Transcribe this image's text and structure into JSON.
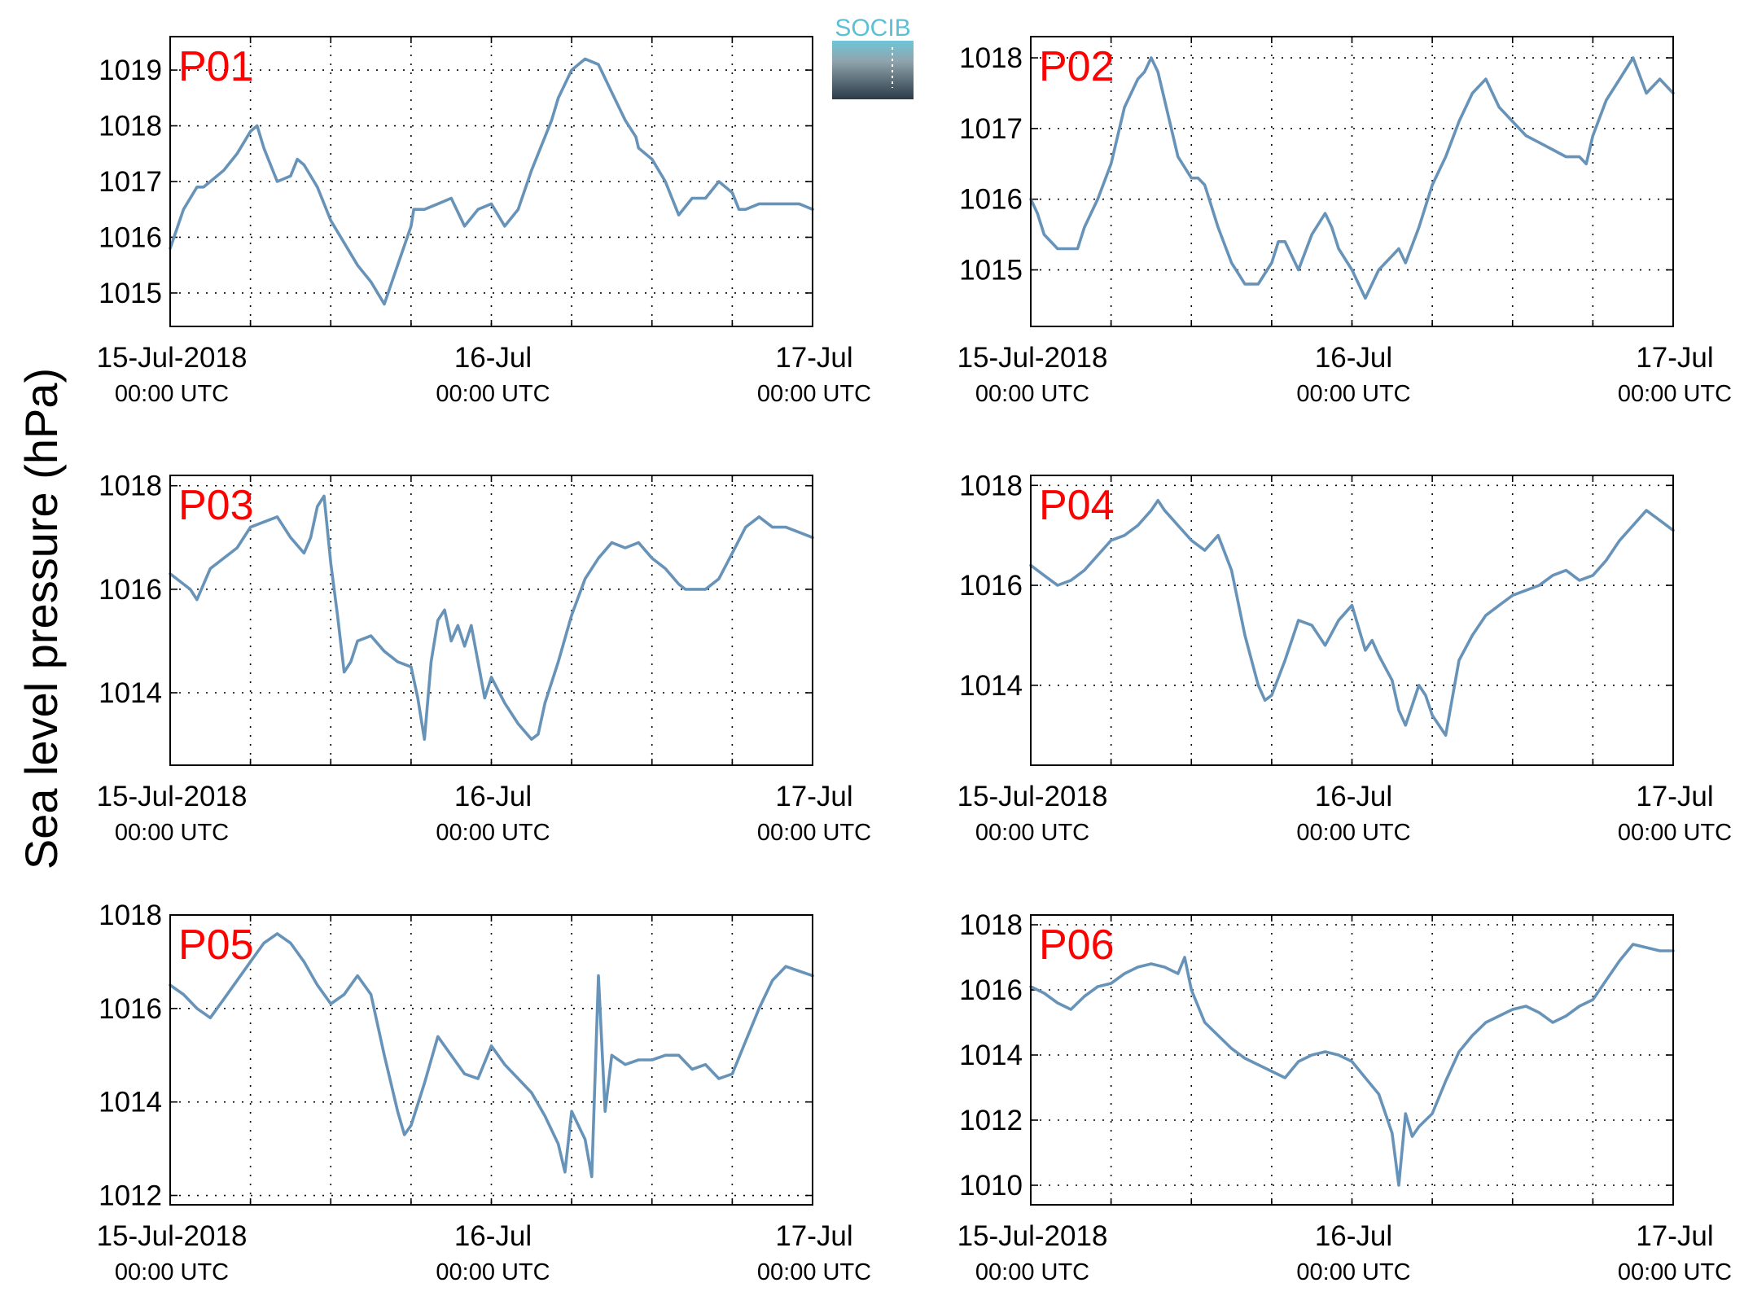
{
  "figure": {
    "ylabel": "Sea level pressure (hPa)",
    "logo_text": "SOCIB",
    "colors": {
      "line": "#6893b9",
      "panel_label": "#ff0000",
      "axis": "#000000",
      "logo_top": "#5bc0d6",
      "logo_bottom": "#2b3a47"
    }
  },
  "chart_data": [
    {
      "type": "line",
      "label": "P01",
      "ylim": [
        1014.4,
        1019.6
      ],
      "yticks": [
        1015,
        1016,
        1017,
        1018,
        1019
      ],
      "grid": true,
      "xlim": [
        0,
        48
      ],
      "xticks": [
        {
          "t": 0,
          "date": "15-Jul-2018",
          "time": "00:00 UTC"
        },
        {
          "t": 24,
          "date": "16-Jul",
          "time": "00:00 UTC"
        },
        {
          "t": 48,
          "date": "17-Jul",
          "time": "00:00 UTC"
        }
      ],
      "x": [
        0,
        1,
        2,
        2.5,
        3,
        4,
        5,
        6,
        6.5,
        7,
        8,
        9,
        9.5,
        10,
        11,
        12,
        13,
        14,
        15,
        16,
        17,
        18,
        18.2,
        19,
        20,
        21,
        22,
        23,
        24,
        25,
        26,
        27,
        28,
        28.5,
        29,
        30,
        31,
        32,
        33,
        34,
        34.8,
        35,
        36,
        37,
        38,
        39,
        40,
        41,
        42,
        42.5,
        43,
        44,
        45,
        45.5,
        46,
        47,
        48
      ],
      "y": [
        1015.8,
        1016.5,
        1016.9,
        1016.9,
        1017.0,
        1017.2,
        1017.5,
        1017.9,
        1018.0,
        1017.6,
        1017.0,
        1017.1,
        1017.4,
        1017.3,
        1016.9,
        1016.3,
        1015.9,
        1015.5,
        1015.2,
        1014.8,
        1015.5,
        1016.2,
        1016.5,
        1016.5,
        1016.6,
        1016.7,
        1016.2,
        1016.5,
        1016.6,
        1016.2,
        1016.5,
        1017.2,
        1017.8,
        1018.1,
        1018.5,
        1019.0,
        1019.2,
        1019.1,
        1018.6,
        1018.1,
        1017.8,
        1017.6,
        1017.4,
        1017.0,
        1016.4,
        1016.7,
        1016.7,
        1017.0,
        1016.8,
        1016.5,
        1016.5,
        1016.6,
        1016.6,
        1016.6,
        1016.6,
        1016.6,
        1016.5
      ]
    },
    {
      "type": "line",
      "label": "P02",
      "ylim": [
        1014.2,
        1018.3
      ],
      "yticks": [
        1015,
        1016,
        1017,
        1018
      ],
      "grid": true,
      "xlim": [
        0,
        48
      ],
      "xticks": [
        {
          "t": 0,
          "date": "15-Jul-2018",
          "time": "00:00 UTC"
        },
        {
          "t": 24,
          "date": "16-Jul",
          "time": "00:00 UTC"
        },
        {
          "t": 48,
          "date": "17-Jul",
          "time": "00:00 UTC"
        }
      ],
      "x": [
        0,
        0.5,
        1,
        2,
        3,
        3.5,
        4,
        5,
        6,
        7,
        8,
        8.5,
        9,
        9.5,
        10,
        11,
        12,
        12.5,
        13,
        14,
        15,
        16,
        17,
        18,
        18.5,
        19,
        20,
        21,
        22,
        22.5,
        23,
        24,
        25,
        26,
        27,
        27.5,
        28,
        29,
        30,
        31,
        32,
        33,
        34,
        35,
        36,
        37,
        38,
        39,
        40,
        41,
        41.5,
        42,
        43,
        44,
        45,
        46,
        47,
        48
      ],
      "y": [
        1016.0,
        1015.8,
        1015.5,
        1015.3,
        1015.3,
        1015.3,
        1015.6,
        1016.0,
        1016.5,
        1017.3,
        1017.7,
        1017.8,
        1018.0,
        1017.8,
        1017.4,
        1016.6,
        1016.3,
        1016.3,
        1016.2,
        1015.6,
        1015.1,
        1014.8,
        1014.8,
        1015.1,
        1015.4,
        1015.4,
        1015.0,
        1015.5,
        1015.8,
        1015.6,
        1015.3,
        1015.0,
        1014.6,
        1015.0,
        1015.2,
        1015.3,
        1015.1,
        1015.6,
        1016.2,
        1016.6,
        1017.1,
        1017.5,
        1017.7,
        1017.3,
        1017.1,
        1016.9,
        1016.8,
        1016.7,
        1016.6,
        1016.6,
        1016.5,
        1016.9,
        1017.4,
        1017.7,
        1018.0,
        1017.5,
        1017.7,
        1017.5
      ]
    },
    {
      "type": "line",
      "label": "P03",
      "ylim": [
        1012.6,
        1018.2
      ],
      "yticks": [
        1014,
        1016,
        1018
      ],
      "grid": true,
      "xlim": [
        0,
        48
      ],
      "xticks": [
        {
          "t": 0,
          "date": "15-Jul-2018",
          "time": "00:00 UTC"
        },
        {
          "t": 24,
          "date": "16-Jul",
          "time": "00:00 UTC"
        },
        {
          "t": 48,
          "date": "17-Jul",
          "time": "00:00 UTC"
        }
      ],
      "x": [
        0,
        1,
        1.5,
        2,
        3,
        4,
        5,
        6,
        7,
        8,
        9,
        10,
        10.5,
        11,
        11.5,
        12,
        12.5,
        13,
        13.5,
        14,
        15,
        16,
        17,
        18,
        18.5,
        19,
        19.5,
        20,
        20.5,
        21,
        21.5,
        22,
        22.5,
        23,
        23.5,
        24,
        25,
        26,
        27,
        27.5,
        28,
        29,
        30,
        31,
        32,
        33,
        34,
        35,
        36,
        37,
        38,
        38.5,
        39,
        40,
        41,
        42,
        43,
        44,
        45,
        46,
        47,
        48
      ],
      "y": [
        1016.3,
        1016.1,
        1016.0,
        1015.8,
        1016.4,
        1016.6,
        1016.8,
        1017.2,
        1017.3,
        1017.4,
        1017.0,
        1016.7,
        1017.0,
        1017.6,
        1017.8,
        1016.5,
        1015.5,
        1014.4,
        1014.6,
        1015.0,
        1015.1,
        1014.8,
        1014.6,
        1014.5,
        1013.9,
        1013.1,
        1014.6,
        1015.4,
        1015.6,
        1015.0,
        1015.3,
        1014.9,
        1015.3,
        1014.6,
        1013.9,
        1014.3,
        1013.8,
        1013.4,
        1013.1,
        1013.2,
        1013.8,
        1014.6,
        1015.5,
        1016.2,
        1016.6,
        1016.9,
        1016.8,
        1016.9,
        1016.6,
        1016.4,
        1016.1,
        1016.0,
        1016.0,
        1016.0,
        1016.2,
        1016.7,
        1017.2,
        1017.4,
        1017.2,
        1017.2,
        1017.1,
        1017.0
      ]
    },
    {
      "type": "line",
      "label": "P04",
      "ylim": [
        1012.4,
        1018.2
      ],
      "yticks": [
        1014,
        1016,
        1018
      ],
      "grid": true,
      "xlim": [
        0,
        48
      ],
      "xticks": [
        {
          "t": 0,
          "date": "15-Jul-2018",
          "time": "00:00 UTC"
        },
        {
          "t": 24,
          "date": "16-Jul",
          "time": "00:00 UTC"
        },
        {
          "t": 48,
          "date": "17-Jul",
          "time": "00:00 UTC"
        }
      ],
      "x": [
        0,
        1,
        2,
        3,
        4,
        5,
        6,
        7,
        8,
        9,
        9.5,
        10,
        11,
        12,
        13,
        14,
        15,
        16,
        17,
        17.5,
        18,
        19,
        20,
        21,
        22,
        23,
        24,
        25,
        25.5,
        26,
        27,
        27.5,
        28,
        29,
        29.5,
        30,
        31,
        32,
        33,
        34,
        35,
        36,
        37,
        38,
        39,
        40,
        41,
        42,
        43,
        44,
        45,
        46,
        47,
        48
      ],
      "y": [
        1016.4,
        1016.2,
        1016.0,
        1016.1,
        1016.3,
        1016.6,
        1016.9,
        1017.0,
        1017.2,
        1017.5,
        1017.7,
        1017.5,
        1017.2,
        1016.9,
        1016.7,
        1017.0,
        1016.3,
        1015.0,
        1014.0,
        1013.7,
        1013.8,
        1014.5,
        1015.3,
        1015.2,
        1014.8,
        1015.3,
        1015.6,
        1014.7,
        1014.9,
        1014.6,
        1014.1,
        1013.5,
        1013.2,
        1014.0,
        1013.8,
        1013.4,
        1013.0,
        1014.5,
        1015.0,
        1015.4,
        1015.6,
        1015.8,
        1015.9,
        1016.0,
        1016.2,
        1016.3,
        1016.1,
        1016.2,
        1016.5,
        1016.9,
        1017.2,
        1017.5,
        1017.3,
        1017.1
      ]
    },
    {
      "type": "line",
      "label": "P05",
      "ylim": [
        1011.8,
        1018.0
      ],
      "yticks": [
        1012,
        1014,
        1016,
        1018
      ],
      "grid": true,
      "xlim": [
        0,
        48
      ],
      "xticks": [
        {
          "t": 0,
          "date": "15-Jul-2018",
          "time": "00:00 UTC"
        },
        {
          "t": 24,
          "date": "16-Jul",
          "time": "00:00 UTC"
        },
        {
          "t": 48,
          "date": "17-Jul",
          "time": "00:00 UTC"
        }
      ],
      "x": [
        0,
        1,
        2,
        3,
        4,
        5,
        6,
        7,
        8,
        9,
        10,
        11,
        12,
        13,
        14,
        15,
        16,
        17,
        17.5,
        18,
        19,
        20,
        21,
        22,
        23,
        24,
        25,
        26,
        27,
        28,
        29,
        29.5,
        30,
        31,
        31.5,
        32,
        32.5,
        33,
        34,
        35,
        36,
        37,
        38,
        39,
        40,
        41,
        42,
        43,
        44,
        45,
        46,
        47,
        48
      ],
      "y": [
        1016.5,
        1016.3,
        1016.0,
        1015.8,
        1016.2,
        1016.6,
        1017.0,
        1017.4,
        1017.6,
        1017.4,
        1017.0,
        1016.5,
        1016.1,
        1016.3,
        1016.7,
        1016.3,
        1015.0,
        1013.8,
        1013.3,
        1013.5,
        1014.4,
        1015.4,
        1015.0,
        1014.6,
        1014.5,
        1015.2,
        1014.8,
        1014.5,
        1014.2,
        1013.7,
        1013.1,
        1012.5,
        1013.8,
        1013.2,
        1012.4,
        1016.7,
        1013.8,
        1015.0,
        1014.8,
        1014.9,
        1014.9,
        1015.0,
        1015.0,
        1014.7,
        1014.8,
        1014.5,
        1014.6,
        1015.3,
        1016.0,
        1016.6,
        1016.9,
        1016.8,
        1016.7
      ]
    },
    {
      "type": "line",
      "label": "P06",
      "ylim": [
        1009.4,
        1018.3
      ],
      "yticks": [
        1010,
        1012,
        1014,
        1016,
        1018
      ],
      "grid": true,
      "xlim": [
        0,
        48
      ],
      "xticks": [
        {
          "t": 0,
          "date": "15-Jul-2018",
          "time": "00:00 UTC"
        },
        {
          "t": 24,
          "date": "16-Jul",
          "time": "00:00 UTC"
        },
        {
          "t": 48,
          "date": "17-Jul",
          "time": "00:00 UTC"
        }
      ],
      "x": [
        0,
        1,
        2,
        3,
        4,
        5,
        6,
        7,
        8,
        9,
        10,
        11,
        11.5,
        12,
        13,
        14,
        15,
        16,
        17,
        18,
        19,
        20,
        21,
        22,
        23,
        24,
        25,
        26,
        27,
        27.5,
        28,
        28.5,
        29,
        30,
        31,
        32,
        33,
        34,
        35,
        36,
        37,
        38,
        39,
        40,
        41,
        42,
        43,
        44,
        45,
        46,
        47,
        48
      ],
      "y": [
        1016.1,
        1015.9,
        1015.6,
        1015.4,
        1015.8,
        1016.1,
        1016.2,
        1016.5,
        1016.7,
        1016.8,
        1016.7,
        1016.5,
        1017.0,
        1016.0,
        1015.0,
        1014.6,
        1014.2,
        1013.9,
        1013.7,
        1013.5,
        1013.3,
        1013.8,
        1014.0,
        1014.1,
        1014.0,
        1013.8,
        1013.3,
        1012.8,
        1011.6,
        1010.0,
        1012.2,
        1011.5,
        1011.8,
        1012.2,
        1013.2,
        1014.1,
        1014.6,
        1015.0,
        1015.2,
        1015.4,
        1015.5,
        1015.3,
        1015.0,
        1015.2,
        1015.5,
        1015.7,
        1016.3,
        1016.9,
        1017.4,
        1017.3,
        1017.2,
        1017.2
      ]
    }
  ]
}
